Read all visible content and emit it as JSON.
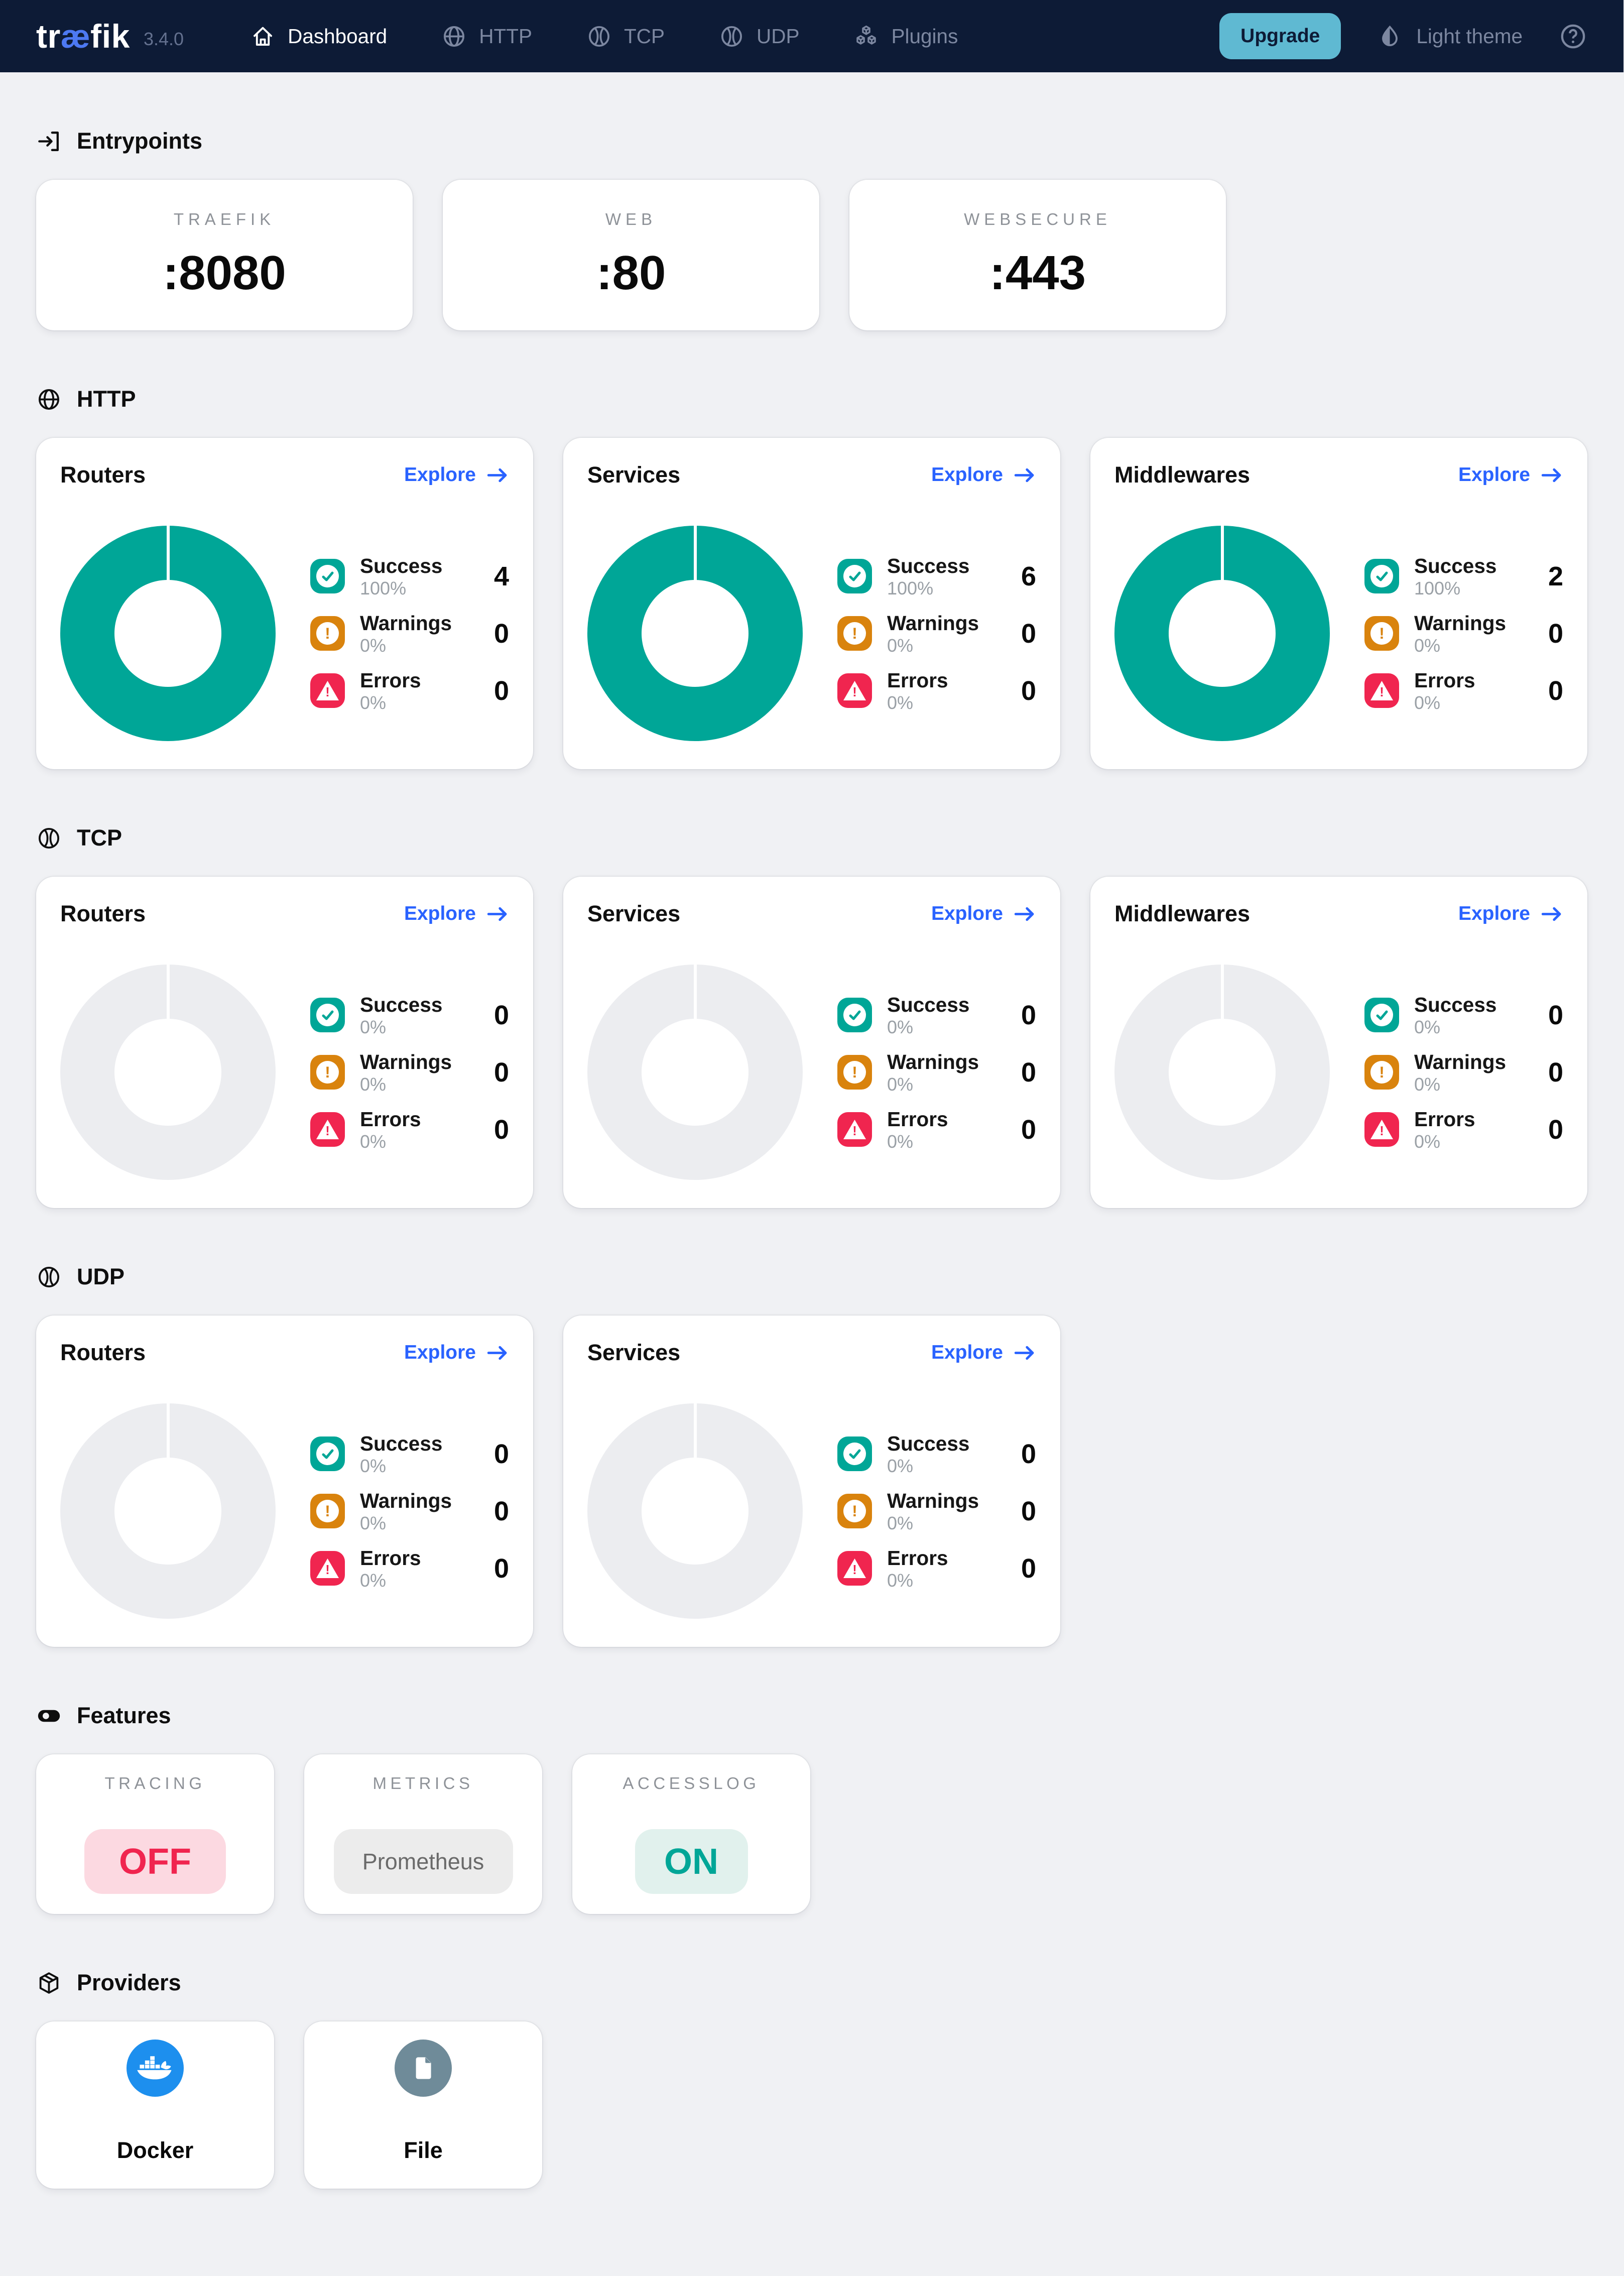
{
  "colors": {
    "navbar_bg": "#0d1b36",
    "teal": "#00a697",
    "donut_empty": "#ecedf0",
    "warning_orange": "#d9830d",
    "error_red": "#f0254f",
    "link_blue": "#2962ff",
    "upgrade_bg": "#5fb9d2",
    "docker_blue": "#1d8fee",
    "file_slate": "#6f8b99",
    "logo_ae_blue": "#4d79f2"
  },
  "navbar": {
    "logo_prefix": "tr",
    "logo_ae": "æ",
    "logo_suffix": "fik",
    "version": "3.4.0",
    "items": [
      {
        "label": "Dashboard",
        "icon": "home",
        "active": true
      },
      {
        "label": "HTTP",
        "icon": "globe",
        "active": false
      },
      {
        "label": "TCP",
        "icon": "ball",
        "active": false
      },
      {
        "label": "UDP",
        "icon": "ball",
        "active": false
      },
      {
        "label": "Plugins",
        "icon": "cubes",
        "active": false
      }
    ],
    "upgrade_label": "Upgrade",
    "theme_label": "Light theme"
  },
  "sections": [
    {
      "type": "entry",
      "id": "entrypoints",
      "title": "Entrypoints",
      "icon": "login",
      "cards": [
        {
          "label": "TRAEFIK",
          "value": ":8080"
        },
        {
          "label": "WEB",
          "value": ":80"
        },
        {
          "label": "WEBSECURE",
          "value": ":443"
        }
      ]
    },
    {
      "type": "proto",
      "id": "http",
      "title": "HTTP",
      "icon": "globe",
      "cards": [
        {
          "title": "Routers",
          "explore_label": "Explore",
          "donut": "teal",
          "legend": [
            {
              "type": "success",
              "label": "Success",
              "pct": "100%",
              "count": "4"
            },
            {
              "type": "warning",
              "label": "Warnings",
              "pct": "0%",
              "count": "0"
            },
            {
              "type": "error",
              "label": "Errors",
              "pct": "0%",
              "count": "0"
            }
          ]
        },
        {
          "title": "Services",
          "explore_label": "Explore",
          "donut": "teal",
          "legend": [
            {
              "type": "success",
              "label": "Success",
              "pct": "100%",
              "count": "6"
            },
            {
              "type": "warning",
              "label": "Warnings",
              "pct": "0%",
              "count": "0"
            },
            {
              "type": "error",
              "label": "Errors",
              "pct": "0%",
              "count": "0"
            }
          ]
        },
        {
          "title": "Middlewares",
          "explore_label": "Explore",
          "donut": "teal",
          "legend": [
            {
              "type": "success",
              "label": "Success",
              "pct": "100%",
              "count": "2"
            },
            {
              "type": "warning",
              "label": "Warnings",
              "pct": "0%",
              "count": "0"
            },
            {
              "type": "error",
              "label": "Errors",
              "pct": "0%",
              "count": "0"
            }
          ]
        }
      ]
    },
    {
      "type": "proto",
      "id": "tcp",
      "title": "TCP",
      "icon": "ball",
      "cards": [
        {
          "title": "Routers",
          "explore_label": "Explore",
          "donut": "empty",
          "legend": [
            {
              "type": "success",
              "label": "Success",
              "pct": "0%",
              "count": "0"
            },
            {
              "type": "warning",
              "label": "Warnings",
              "pct": "0%",
              "count": "0"
            },
            {
              "type": "error",
              "label": "Errors",
              "pct": "0%",
              "count": "0"
            }
          ]
        },
        {
          "title": "Services",
          "explore_label": "Explore",
          "donut": "empty",
          "legend": [
            {
              "type": "success",
              "label": "Success",
              "pct": "0%",
              "count": "0"
            },
            {
              "type": "warning",
              "label": "Warnings",
              "pct": "0%",
              "count": "0"
            },
            {
              "type": "error",
              "label": "Errors",
              "pct": "0%",
              "count": "0"
            }
          ]
        },
        {
          "title": "Middlewares",
          "explore_label": "Explore",
          "donut": "empty",
          "legend": [
            {
              "type": "success",
              "label": "Success",
              "pct": "0%",
              "count": "0"
            },
            {
              "type": "warning",
              "label": "Warnings",
              "pct": "0%",
              "count": "0"
            },
            {
              "type": "error",
              "label": "Errors",
              "pct": "0%",
              "count": "0"
            }
          ]
        }
      ]
    },
    {
      "type": "proto",
      "id": "udp",
      "title": "UDP",
      "icon": "ball",
      "cards": [
        {
          "title": "Routers",
          "explore_label": "Explore",
          "donut": "empty",
          "legend": [
            {
              "type": "success",
              "label": "Success",
              "pct": "0%",
              "count": "0"
            },
            {
              "type": "warning",
              "label": "Warnings",
              "pct": "0%",
              "count": "0"
            },
            {
              "type": "error",
              "label": "Errors",
              "pct": "0%",
              "count": "0"
            }
          ]
        },
        {
          "title": "Services",
          "explore_label": "Explore",
          "donut": "empty",
          "legend": [
            {
              "type": "success",
              "label": "Success",
              "pct": "0%",
              "count": "0"
            },
            {
              "type": "warning",
              "label": "Warnings",
              "pct": "0%",
              "count": "0"
            },
            {
              "type": "error",
              "label": "Errors",
              "pct": "0%",
              "count": "0"
            }
          ]
        }
      ]
    },
    {
      "type": "feature",
      "id": "features",
      "title": "Features",
      "icon": "toggle",
      "cards": [
        {
          "label": "TRACING",
          "value": "OFF",
          "state": "off"
        },
        {
          "label": "METRICS",
          "value": "Prometheus",
          "state": "neutral"
        },
        {
          "label": "ACCESSLOG",
          "value": "ON",
          "state": "on"
        }
      ]
    },
    {
      "type": "provider",
      "id": "providers",
      "title": "Providers",
      "icon": "package",
      "cards": [
        {
          "label": "Docker",
          "icon": "docker",
          "color": "#1d8fee"
        },
        {
          "label": "File",
          "icon": "file",
          "color": "#6f8b99"
        }
      ]
    }
  ]
}
